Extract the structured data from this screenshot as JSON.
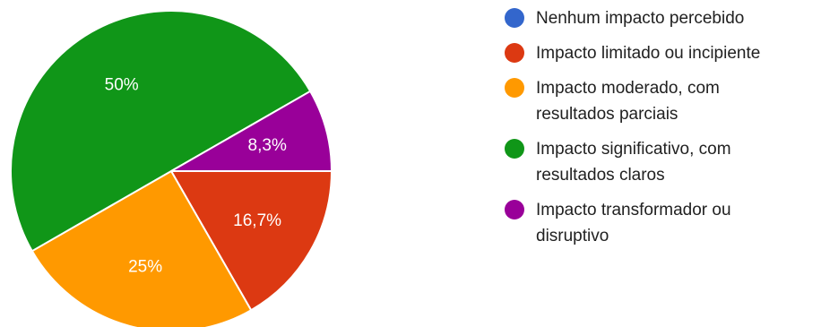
{
  "chart_data": {
    "type": "pie",
    "title": "",
    "categories": [
      "Nenhum impacto percebido",
      "Impacto limitado ou incipiente",
      "Impacto moderado, com resultados parciais",
      "Impacto significativo, com resultados claros",
      "Impacto transformador ou disruptivo"
    ],
    "values": [
      0,
      16.7,
      25,
      50,
      8.3
    ],
    "value_labels": [
      "",
      "16,7%",
      "25%",
      "50%",
      "8,3%"
    ],
    "colors": [
      "#3366cc",
      "#dc3912",
      "#ff9900",
      "#109618",
      "#990099"
    ],
    "legend": {
      "position": "right",
      "items": [
        {
          "lines": [
            "Nenhum impacto percebido"
          ],
          "color": "#3366cc"
        },
        {
          "lines": [
            "Impacto limitado ou incipiente"
          ],
          "color": "#dc3912"
        },
        {
          "lines": [
            "Impacto moderado, com",
            "resultados parciais"
          ],
          "color": "#ff9900"
        },
        {
          "lines": [
            "Impacto significativo, com",
            "resultados claros"
          ],
          "color": "#109618"
        },
        {
          "lines": [
            "Impacto transformador ou",
            "disruptivo"
          ],
          "color": "#990099"
        }
      ]
    }
  }
}
